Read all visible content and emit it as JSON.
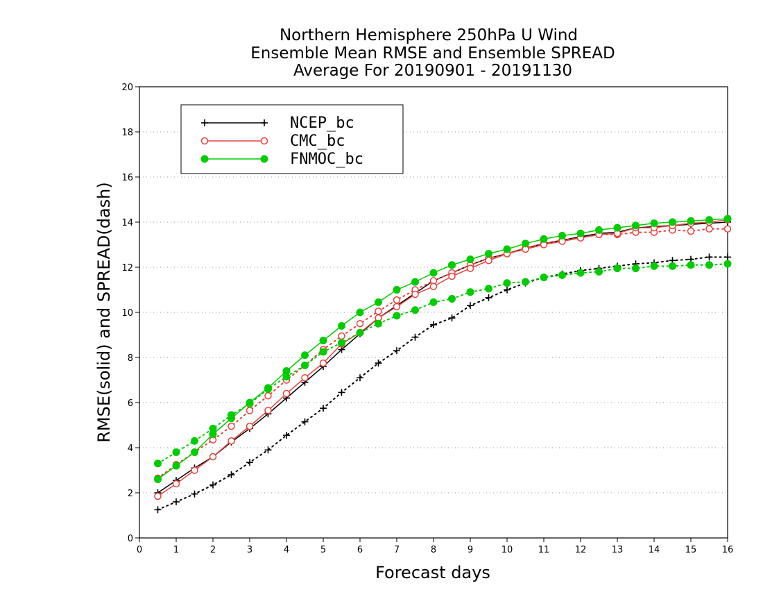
{
  "chart_data": {
    "type": "line",
    "title_lines": [
      "Northern Hemisphere 250hPa U Wind",
      "Ensemble Mean RMSE and Ensemble SPREAD",
      "Average For 20190901 - 20191130"
    ],
    "xlabel": "Forecast days",
    "ylabel": "RMSE(solid) and SPREAD(dash)",
    "xlim": [
      0,
      16
    ],
    "ylim": [
      0,
      20
    ],
    "xticks": [
      "0",
      "1",
      "2",
      "3",
      "4",
      "5",
      "6",
      "7",
      "8",
      "9",
      "10",
      "11",
      "12",
      "13",
      "14",
      "15",
      "16"
    ],
    "yticks": [
      "0",
      "2",
      "4",
      "6",
      "8",
      "10",
      "12",
      "14",
      "16",
      "18",
      "20"
    ],
    "grid": "horizontal dotted",
    "legend_position": "top-left",
    "x": [
      0.5,
      1,
      1.5,
      2,
      2.5,
      3,
      3.5,
      4,
      4.5,
      5,
      5.5,
      6,
      6.5,
      7,
      7.5,
      8,
      8.5,
      9,
      9.5,
      10,
      10.5,
      11,
      11.5,
      12,
      12.5,
      13,
      13.5,
      14,
      14.5,
      15,
      15.5,
      16
    ],
    "series": [
      {
        "name": "NCEP_bc",
        "color": "#000000",
        "marker": "plus",
        "rmse": [
          2.0,
          2.55,
          3.1,
          3.6,
          4.25,
          4.85,
          5.5,
          6.2,
          6.9,
          7.6,
          8.35,
          9.05,
          9.75,
          10.3,
          10.85,
          11.4,
          11.75,
          12.1,
          12.4,
          12.6,
          12.85,
          13.05,
          13.2,
          13.35,
          13.5,
          13.55,
          13.75,
          13.8,
          13.85,
          13.9,
          13.95,
          14.0
        ],
        "spread": [
          1.25,
          1.6,
          1.95,
          2.35,
          2.8,
          3.35,
          3.9,
          4.55,
          5.15,
          5.75,
          6.45,
          7.1,
          7.75,
          8.3,
          8.9,
          9.45,
          9.75,
          10.3,
          10.65,
          11.0,
          11.3,
          11.55,
          11.7,
          11.85,
          11.95,
          12.05,
          12.15,
          12.2,
          12.3,
          12.35,
          12.45,
          12.45
        ]
      },
      {
        "name": "CMC_bc",
        "color": "#e8423c",
        "marker": "open-circle",
        "rmse": [
          1.85,
          2.4,
          3.0,
          3.6,
          4.3,
          4.95,
          5.65,
          6.4,
          7.1,
          7.75,
          8.6,
          9.1,
          9.75,
          10.25,
          10.8,
          11.15,
          11.6,
          11.95,
          12.3,
          12.6,
          12.8,
          13.0,
          13.15,
          13.3,
          13.45,
          13.5,
          13.75,
          13.75,
          13.85,
          13.95,
          14.0,
          14.1
        ],
        "spread": [
          2.65,
          3.25,
          3.8,
          4.35,
          4.95,
          5.65,
          6.3,
          7.0,
          7.65,
          8.35,
          8.95,
          9.5,
          10.05,
          10.55,
          11.0,
          11.4,
          11.75,
          12.1,
          12.4,
          12.6,
          12.85,
          13.05,
          13.2,
          13.3,
          13.45,
          13.45,
          13.55,
          13.55,
          13.65,
          13.6,
          13.7,
          13.7
        ]
      },
      {
        "name": "FNMOC_bc",
        "color": "#00cc00",
        "marker": "filled-circle",
        "rmse": [
          2.6,
          3.2,
          3.8,
          4.6,
          5.3,
          6.0,
          6.65,
          7.4,
          8.1,
          8.75,
          9.4,
          10.0,
          10.45,
          11.0,
          11.35,
          11.75,
          12.1,
          12.35,
          12.6,
          12.8,
          13.05,
          13.25,
          13.4,
          13.5,
          13.65,
          13.75,
          13.85,
          13.95,
          14.0,
          14.05,
          14.1,
          14.15
        ],
        "spread": [
          3.3,
          3.8,
          4.3,
          4.85,
          5.45,
          5.95,
          6.6,
          7.15,
          7.65,
          8.25,
          8.65,
          9.1,
          9.5,
          9.85,
          10.1,
          10.45,
          10.6,
          10.9,
          11.05,
          11.3,
          11.35,
          11.55,
          11.65,
          11.75,
          11.8,
          11.95,
          11.95,
          12.05,
          12.05,
          12.1,
          12.1,
          12.15
        ]
      }
    ]
  }
}
